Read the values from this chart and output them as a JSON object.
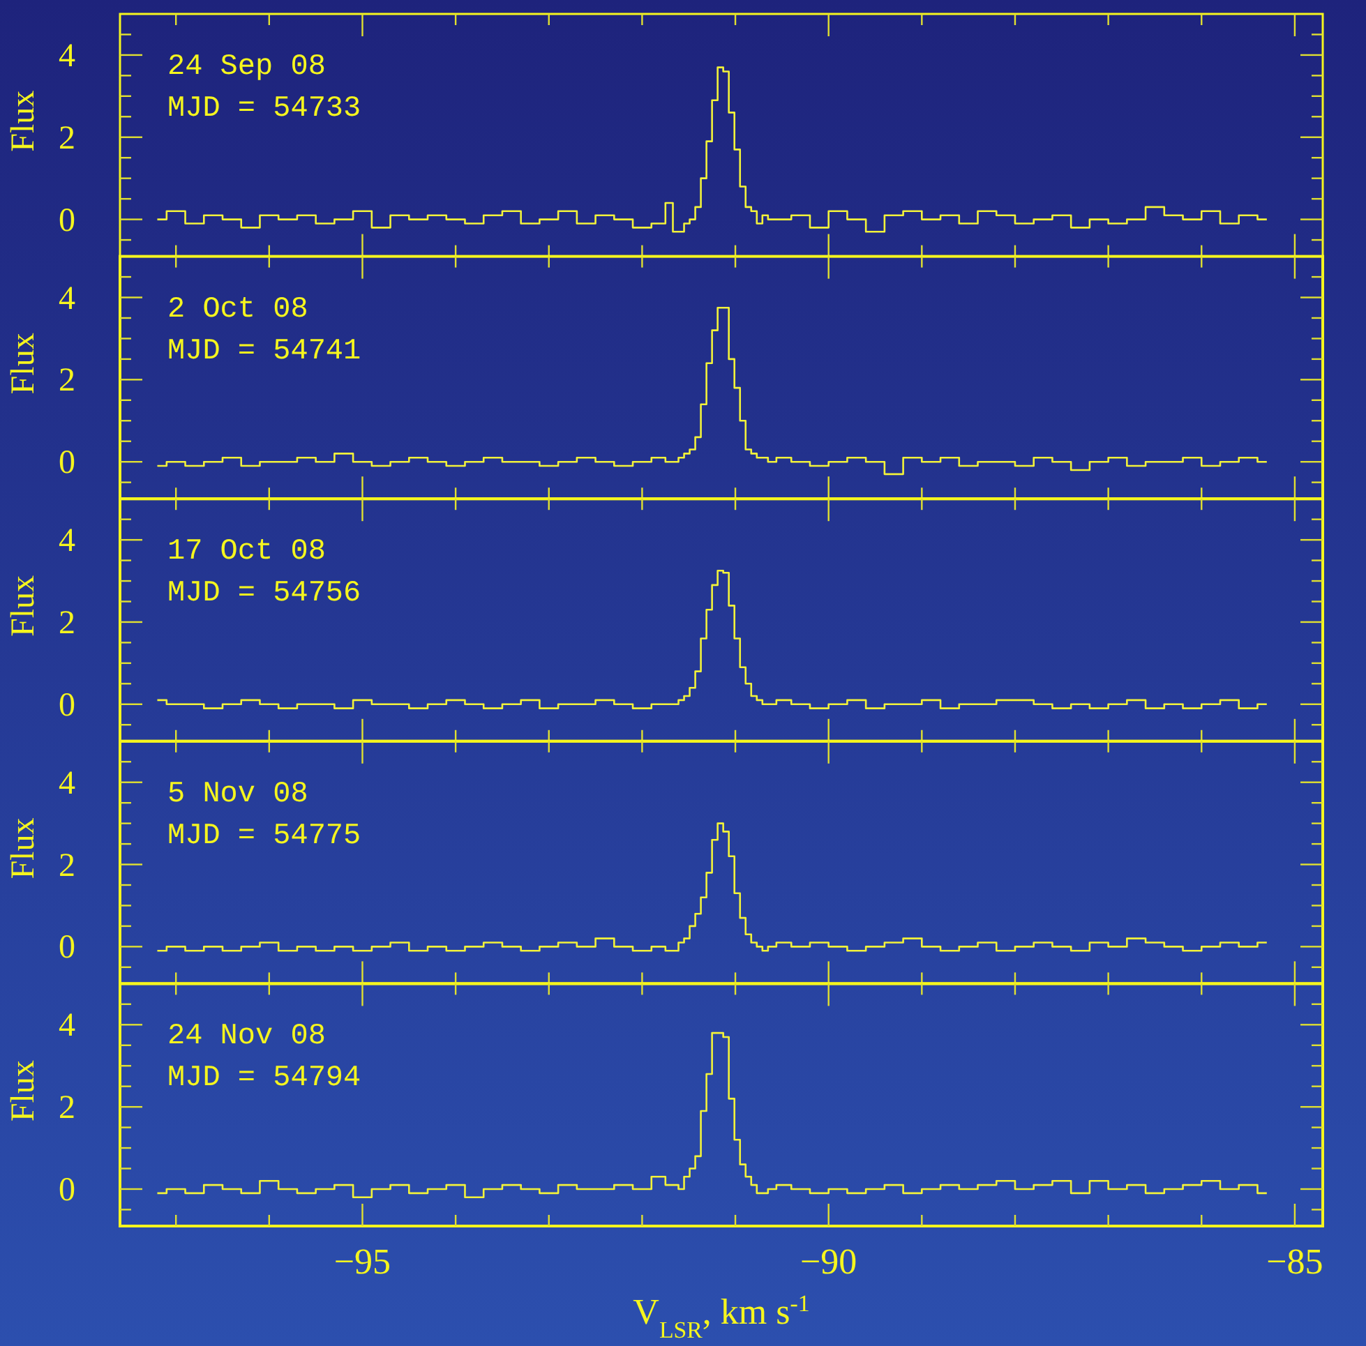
{
  "chart_data": [
    {
      "type": "step",
      "ylabel": "Flux",
      "annotations": [
        "24 Sep 08",
        "MJD = 54733"
      ],
      "color": "#f2f23a",
      "tick_labels": "y",
      "xlim": [
        -97.6,
        -84.7
      ],
      "ylim": [
        -0.9,
        5
      ],
      "xticks": [
        {
          "value": -97,
          "label": null
        },
        {
          "value": -96,
          "label": null
        },
        -95,
        {
          "value": -94,
          "label": null
        },
        {
          "value": -93,
          "label": null
        },
        {
          "value": -92,
          "label": null
        },
        {
          "value": -91,
          "label": null
        },
        -90,
        {
          "value": -89,
          "label": null
        },
        {
          "value": -88,
          "label": null
        },
        {
          "value": -87,
          "label": null
        },
        {
          "value": -86,
          "label": null
        },
        -85
      ],
      "yticks": [
        {
          "value": -0.5,
          "label": null
        },
        0,
        {
          "value": 0.5,
          "label": null
        },
        {
          "value": 1,
          "label": null
        },
        {
          "value": 1.5,
          "label": null
        },
        2,
        {
          "value": 2.5,
          "label": null
        },
        {
          "value": 3,
          "label": null
        },
        {
          "value": 3.5,
          "label": null
        },
        4,
        {
          "value": 4.5,
          "label": null
        }
      ],
      "x": [
        -97.2,
        -97.0,
        -96.8,
        -96.6,
        -96.4,
        -96.2,
        -96.0,
        -95.8,
        -95.6,
        -95.4,
        -95.2,
        -95.0,
        -94.8,
        -94.6,
        -94.4,
        -94.2,
        -94.0,
        -93.8,
        -93.6,
        -93.4,
        -93.2,
        -93.0,
        -92.8,
        -92.6,
        -92.4,
        -92.2,
        -92.0,
        -91.8,
        -91.7,
        -91.64,
        -91.58,
        -91.52,
        -91.46,
        -91.4,
        -91.34,
        -91.28,
        -91.22,
        -91.16,
        -91.1,
        -91.04,
        -90.98,
        -90.92,
        -90.86,
        -90.8,
        -90.74,
        -90.68,
        -90.62,
        -90.5,
        -90.3,
        -90.1,
        -89.9,
        -89.7,
        -89.5,
        -89.3,
        -89.1,
        -88.9,
        -88.7,
        -88.5,
        -88.3,
        -88.1,
        -87.9,
        -87.7,
        -87.5,
        -87.3,
        -87.1,
        -86.9,
        -86.7,
        -86.5,
        -86.3,
        -86.1,
        -85.9,
        -85.7,
        -85.5,
        -85.3
      ],
      "values": [
        0.0,
        0.2,
        -0.1,
        0.1,
        0.0,
        -0.2,
        0.1,
        0.0,
        0.1,
        -0.1,
        0.0,
        0.2,
        -0.2,
        0.1,
        0.0,
        0.1,
        0.0,
        -0.1,
        0.1,
        0.2,
        -0.1,
        0.0,
        0.2,
        -0.1,
        0.1,
        0.0,
        -0.2,
        -0.1,
        0.4,
        -0.3,
        -0.3,
        -0.1,
        0.0,
        0.3,
        1.0,
        1.9,
        2.9,
        3.7,
        3.6,
        2.6,
        1.7,
        0.8,
        0.3,
        0.2,
        -0.1,
        0.1,
        0.0,
        0.0,
        0.1,
        -0.2,
        0.2,
        0.0,
        -0.3,
        0.1,
        0.2,
        0.0,
        0.1,
        -0.1,
        0.2,
        0.1,
        -0.1,
        0.0,
        0.1,
        -0.2,
        0.0,
        -0.1,
        0.0,
        0.3,
        0.1,
        0.0,
        0.2,
        -0.1,
        0.1,
        0.0
      ]
    },
    {
      "type": "step",
      "ylabel": "Flux",
      "annotations": [
        "2 Oct 08",
        "MJD = 54741"
      ],
      "color": "#f2f23a",
      "tick_labels": "y",
      "xlim": [
        -97.6,
        -84.7
      ],
      "ylim": [
        -0.9,
        5
      ],
      "xticks": [
        {
          "value": -97,
          "label": null
        },
        {
          "value": -96,
          "label": null
        },
        -95,
        {
          "value": -94,
          "label": null
        },
        {
          "value": -93,
          "label": null
        },
        {
          "value": -92,
          "label": null
        },
        {
          "value": -91,
          "label": null
        },
        -90,
        {
          "value": -89,
          "label": null
        },
        {
          "value": -88,
          "label": null
        },
        {
          "value": -87,
          "label": null
        },
        {
          "value": -86,
          "label": null
        },
        -85
      ],
      "yticks": [
        {
          "value": -0.5,
          "label": null
        },
        0,
        {
          "value": 0.5,
          "label": null
        },
        {
          "value": 1,
          "label": null
        },
        {
          "value": 1.5,
          "label": null
        },
        2,
        {
          "value": 2.5,
          "label": null
        },
        {
          "value": 3,
          "label": null
        },
        {
          "value": 3.5,
          "label": null
        },
        4,
        {
          "value": 4.5,
          "label": null
        }
      ],
      "x": [
        -97.2,
        -97.0,
        -96.8,
        -96.6,
        -96.4,
        -96.2,
        -96.0,
        -95.8,
        -95.6,
        -95.4,
        -95.2,
        -95.0,
        -94.8,
        -94.6,
        -94.4,
        -94.2,
        -94.0,
        -93.8,
        -93.6,
        -93.4,
        -93.2,
        -93.0,
        -92.8,
        -92.6,
        -92.4,
        -92.2,
        -92.0,
        -91.8,
        -91.7,
        -91.64,
        -91.58,
        -91.52,
        -91.46,
        -91.4,
        -91.34,
        -91.28,
        -91.22,
        -91.16,
        -91.1,
        -91.04,
        -90.98,
        -90.92,
        -90.86,
        -90.8,
        -90.74,
        -90.68,
        -90.62,
        -90.5,
        -90.3,
        -90.1,
        -89.9,
        -89.7,
        -89.5,
        -89.3,
        -89.1,
        -88.9,
        -88.7,
        -88.5,
        -88.3,
        -88.1,
        -87.9,
        -87.7,
        -87.5,
        -87.3,
        -87.1,
        -86.9,
        -86.7,
        -86.5,
        -86.3,
        -86.1,
        -85.9,
        -85.7,
        -85.5,
        -85.3
      ],
      "values": [
        -0.1,
        0.0,
        -0.1,
        0.0,
        0.1,
        -0.1,
        0.0,
        0.0,
        0.1,
        0.0,
        0.2,
        0.0,
        -0.1,
        0.0,
        0.1,
        0.0,
        -0.1,
        0.0,
        0.1,
        0.0,
        0.0,
        -0.1,
        0.0,
        0.1,
        0.0,
        -0.1,
        0.0,
        0.1,
        0.0,
        0.0,
        0.1,
        0.2,
        0.3,
        0.6,
        1.4,
        2.4,
        3.2,
        3.75,
        3.75,
        2.5,
        1.8,
        1.0,
        0.3,
        0.2,
        0.1,
        0.1,
        0.0,
        0.1,
        0.0,
        -0.1,
        0.0,
        0.1,
        0.0,
        -0.3,
        0.1,
        0.0,
        0.1,
        -0.1,
        0.0,
        0.0,
        -0.1,
        0.1,
        0.0,
        -0.2,
        0.0,
        0.1,
        -0.1,
        0.0,
        0.0,
        0.1,
        -0.1,
        0.0,
        0.1,
        0.0
      ]
    },
    {
      "type": "step",
      "ylabel": "Flux",
      "annotations": [
        "17 Oct 08",
        "MJD = 54756"
      ],
      "color": "#f2f23a",
      "tick_labels": "y",
      "xlim": [
        -97.6,
        -84.7
      ],
      "ylim": [
        -0.9,
        5
      ],
      "xticks": [
        {
          "value": -97,
          "label": null
        },
        {
          "value": -96,
          "label": null
        },
        -95,
        {
          "value": -94,
          "label": null
        },
        {
          "value": -93,
          "label": null
        },
        {
          "value": -92,
          "label": null
        },
        {
          "value": -91,
          "label": null
        },
        -90,
        {
          "value": -89,
          "label": null
        },
        {
          "value": -88,
          "label": null
        },
        {
          "value": -87,
          "label": null
        },
        {
          "value": -86,
          "label": null
        },
        -85
      ],
      "yticks": [
        {
          "value": -0.5,
          "label": null
        },
        0,
        {
          "value": 0.5,
          "label": null
        },
        {
          "value": 1,
          "label": null
        },
        {
          "value": 1.5,
          "label": null
        },
        2,
        {
          "value": 2.5,
          "label": null
        },
        {
          "value": 3,
          "label": null
        },
        {
          "value": 3.5,
          "label": null
        },
        4,
        {
          "value": 4.5,
          "label": null
        }
      ],
      "x": [
        -97.2,
        -97.0,
        -96.8,
        -96.6,
        -96.4,
        -96.2,
        -96.0,
        -95.8,
        -95.6,
        -95.4,
        -95.2,
        -95.0,
        -94.8,
        -94.6,
        -94.4,
        -94.2,
        -94.0,
        -93.8,
        -93.6,
        -93.4,
        -93.2,
        -93.0,
        -92.8,
        -92.6,
        -92.4,
        -92.2,
        -92.0,
        -91.8,
        -91.7,
        -91.64,
        -91.58,
        -91.52,
        -91.46,
        -91.4,
        -91.34,
        -91.28,
        -91.22,
        -91.16,
        -91.1,
        -91.04,
        -90.98,
        -90.92,
        -90.86,
        -90.8,
        -90.74,
        -90.68,
        -90.62,
        -90.5,
        -90.3,
        -90.1,
        -89.9,
        -89.7,
        -89.5,
        -89.3,
        -89.1,
        -88.9,
        -88.7,
        -88.5,
        -88.3,
        -88.1,
        -87.9,
        -87.7,
        -87.5,
        -87.3,
        -87.1,
        -86.9,
        -86.7,
        -86.5,
        -86.3,
        -86.1,
        -85.9,
        -85.7,
        -85.5,
        -85.3
      ],
      "values": [
        0.1,
        0.0,
        0.0,
        -0.1,
        0.0,
        0.1,
        0.0,
        -0.1,
        0.0,
        0.0,
        -0.1,
        0.1,
        0.0,
        0.0,
        -0.1,
        0.0,
        0.1,
        0.0,
        -0.1,
        0.0,
        0.1,
        -0.1,
        0.0,
        0.0,
        0.1,
        0.0,
        -0.1,
        0.0,
        0.0,
        0.0,
        0.1,
        0.2,
        0.4,
        0.8,
        1.6,
        2.3,
        2.9,
        3.25,
        3.2,
        2.4,
        1.6,
        0.9,
        0.5,
        0.2,
        0.1,
        0.0,
        0.0,
        0.1,
        0.0,
        -0.1,
        0.0,
        0.1,
        -0.1,
        0.0,
        0.0,
        0.1,
        -0.1,
        0.0,
        0.0,
        0.1,
        0.1,
        0.0,
        -0.1,
        0.0,
        -0.1,
        0.0,
        0.1,
        -0.1,
        0.0,
        -0.1,
        0.0,
        0.1,
        -0.1,
        0.0
      ]
    },
    {
      "type": "step",
      "ylabel": "Flux",
      "annotations": [
        "5 Nov 08",
        "MJD = 54775"
      ],
      "color": "#f2f23a",
      "tick_labels": "y",
      "xlim": [
        -97.6,
        -84.7
      ],
      "ylim": [
        -0.9,
        5
      ],
      "xticks": [
        {
          "value": -97,
          "label": null
        },
        {
          "value": -96,
          "label": null
        },
        -95,
        {
          "value": -94,
          "label": null
        },
        {
          "value": -93,
          "label": null
        },
        {
          "value": -92,
          "label": null
        },
        {
          "value": -91,
          "label": null
        },
        -90,
        {
          "value": -89,
          "label": null
        },
        {
          "value": -88,
          "label": null
        },
        {
          "value": -87,
          "label": null
        },
        {
          "value": -86,
          "label": null
        },
        -85
      ],
      "yticks": [
        {
          "value": -0.5,
          "label": null
        },
        0,
        {
          "value": 0.5,
          "label": null
        },
        {
          "value": 1,
          "label": null
        },
        {
          "value": 1.5,
          "label": null
        },
        2,
        {
          "value": 2.5,
          "label": null
        },
        {
          "value": 3,
          "label": null
        },
        {
          "value": 3.5,
          "label": null
        },
        4,
        {
          "value": 4.5,
          "label": null
        }
      ],
      "x": [
        -97.2,
        -97.0,
        -96.8,
        -96.6,
        -96.4,
        -96.2,
        -96.0,
        -95.8,
        -95.6,
        -95.4,
        -95.2,
        -95.0,
        -94.8,
        -94.6,
        -94.4,
        -94.2,
        -94.0,
        -93.8,
        -93.6,
        -93.4,
        -93.2,
        -93.0,
        -92.8,
        -92.6,
        -92.4,
        -92.2,
        -92.0,
        -91.8,
        -91.7,
        -91.64,
        -91.58,
        -91.52,
        -91.46,
        -91.4,
        -91.34,
        -91.28,
        -91.22,
        -91.16,
        -91.1,
        -91.04,
        -90.98,
        -90.92,
        -90.86,
        -90.8,
        -90.74,
        -90.68,
        -90.62,
        -90.5,
        -90.3,
        -90.1,
        -89.9,
        -89.7,
        -89.5,
        -89.3,
        -89.1,
        -88.9,
        -88.7,
        -88.5,
        -88.3,
        -88.1,
        -87.9,
        -87.7,
        -87.5,
        -87.3,
        -87.1,
        -86.9,
        -86.7,
        -86.5,
        -86.3,
        -86.1,
        -85.9,
        -85.7,
        -85.5,
        -85.3
      ],
      "values": [
        -0.1,
        0.0,
        -0.1,
        0.0,
        -0.1,
        0.0,
        0.1,
        -0.1,
        0.0,
        -0.1,
        0.0,
        -0.1,
        0.0,
        0.1,
        -0.1,
        0.0,
        -0.1,
        0.0,
        0.1,
        0.0,
        -0.1,
        0.0,
        0.1,
        0.0,
        0.2,
        0.0,
        -0.1,
        0.0,
        -0.1,
        -0.1,
        0.1,
        0.2,
        0.5,
        0.8,
        1.2,
        1.8,
        2.6,
        3.0,
        2.8,
        2.2,
        1.3,
        0.7,
        0.3,
        0.1,
        0.0,
        -0.1,
        0.0,
        0.1,
        0.0,
        0.1,
        0.0,
        -0.1,
        0.0,
        0.1,
        0.2,
        0.0,
        -0.1,
        0.0,
        0.1,
        -0.1,
        0.0,
        0.1,
        0.0,
        -0.1,
        0.1,
        0.0,
        0.2,
        0.1,
        0.0,
        -0.1,
        0.0,
        0.1,
        0.0,
        0.1
      ]
    },
    {
      "type": "step",
      "ylabel": "Flux",
      "xlabel": "V$_{LSR}$, km s$^{-1}$",
      "annotations": [
        "24 Nov 08",
        "MJD = 54794"
      ],
      "color": "#f2f23a",
      "xlim": [
        -97.6,
        -84.7
      ],
      "ylim": [
        -0.9,
        5
      ],
      "xticks": [
        {
          "value": -97,
          "label": null
        },
        {
          "value": -96,
          "label": null
        },
        -95,
        {
          "value": -94,
          "label": null
        },
        {
          "value": -93,
          "label": null
        },
        {
          "value": -92,
          "label": null
        },
        {
          "value": -91,
          "label": null
        },
        -90,
        {
          "value": -89,
          "label": null
        },
        {
          "value": -88,
          "label": null
        },
        {
          "value": -87,
          "label": null
        },
        {
          "value": -86,
          "label": null
        },
        -85
      ],
      "yticks": [
        {
          "value": -0.5,
          "label": null
        },
        0,
        {
          "value": 0.5,
          "label": null
        },
        {
          "value": 1,
          "label": null
        },
        {
          "value": 1.5,
          "label": null
        },
        2,
        {
          "value": 2.5,
          "label": null
        },
        {
          "value": 3,
          "label": null
        },
        {
          "value": 3.5,
          "label": null
        },
        4,
        {
          "value": 4.5,
          "label": null
        }
      ],
      "x": [
        -97.2,
        -97.0,
        -96.8,
        -96.6,
        -96.4,
        -96.2,
        -96.0,
        -95.8,
        -95.6,
        -95.4,
        -95.2,
        -95.0,
        -94.8,
        -94.6,
        -94.4,
        -94.2,
        -94.0,
        -93.8,
        -93.6,
        -93.4,
        -93.2,
        -93.0,
        -92.8,
        -92.6,
        -92.4,
        -92.2,
        -92.0,
        -91.8,
        -91.7,
        -91.64,
        -91.58,
        -91.52,
        -91.46,
        -91.4,
        -91.34,
        -91.28,
        -91.22,
        -91.16,
        -91.1,
        -91.04,
        -90.98,
        -90.92,
        -90.86,
        -90.8,
        -90.74,
        -90.68,
        -90.62,
        -90.5,
        -90.3,
        -90.1,
        -89.9,
        -89.7,
        -89.5,
        -89.3,
        -89.1,
        -88.9,
        -88.7,
        -88.5,
        -88.3,
        -88.1,
        -87.9,
        -87.7,
        -87.5,
        -87.3,
        -87.1,
        -86.9,
        -86.7,
        -86.5,
        -86.3,
        -86.1,
        -85.9,
        -85.7,
        -85.5,
        -85.3
      ],
      "values": [
        -0.1,
        0.0,
        -0.1,
        0.1,
        0.0,
        -0.1,
        0.2,
        0.0,
        -0.1,
        0.0,
        0.1,
        -0.2,
        0.0,
        0.1,
        -0.1,
        0.0,
        0.1,
        -0.2,
        0.0,
        0.1,
        0.0,
        -0.1,
        0.1,
        0.0,
        0.0,
        0.1,
        0.0,
        0.3,
        0.1,
        0.1,
        0.0,
        0.3,
        0.5,
        0.8,
        1.9,
        2.8,
        3.8,
        3.8,
        3.7,
        2.2,
        1.2,
        0.6,
        0.3,
        0.1,
        -0.1,
        -0.1,
        0.0,
        0.1,
        0.0,
        -0.1,
        0.0,
        -0.1,
        0.0,
        0.1,
        -0.1,
        0.0,
        0.1,
        0.0,
        0.1,
        0.2,
        0.0,
        0.1,
        0.2,
        -0.1,
        0.2,
        0.0,
        0.1,
        -0.1,
        0.0,
        0.1,
        0.2,
        0.0,
        0.1,
        -0.1
      ]
    }
  ]
}
